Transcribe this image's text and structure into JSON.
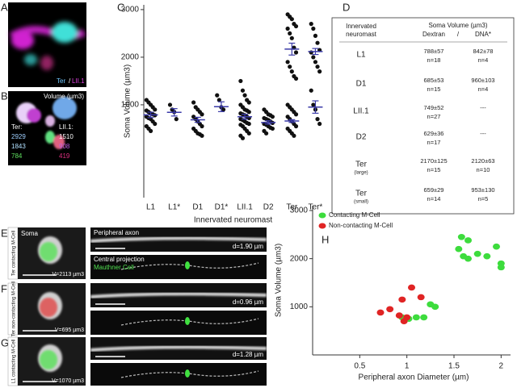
{
  "panels": {
    "A": {
      "letter": "A",
      "legend": [
        "Ter",
        "/",
        "LII.1"
      ]
    },
    "B": {
      "letter": "B",
      "title": "Volume (µm3)",
      "ter": {
        "label": "Ter:",
        "values": [
          "2929",
          "1843",
          "784"
        ]
      },
      "lii": {
        "label": "LII.1:",
        "values": [
          "1510",
          "908",
          "419"
        ]
      }
    },
    "C": {
      "letter": "C"
    },
    "D": {
      "letter": "D"
    },
    "E": {
      "letter": "E",
      "side": "Ter contacting M-Cell",
      "soma": "Soma",
      "axon": "Peripheral axon",
      "diameter": "d=1.90 µm",
      "central": "Central projection",
      "mauthner": "Mauthner Cell",
      "volume": "V=2113 µm3"
    },
    "F": {
      "letter": "F",
      "side": "Ter non-contacting M-Cell",
      "diameter": "d=0.96 µm",
      "volume": "V=695 µm3"
    },
    "G": {
      "letter": "G",
      "side": "L1 contacting M-Cell",
      "diameter": "d=1.28 µm",
      "volume": "V=1070 µm3"
    },
    "H": {
      "letter": "H"
    }
  },
  "table": {
    "header": {
      "col1": [
        "Innervated",
        "neuromast"
      ],
      "col2": "Soma Volume (µm3)",
      "col3": [
        "Dextran",
        "/",
        "DNA*"
      ]
    },
    "rows": [
      {
        "label": "L1",
        "dextran": [
          "788±57",
          "n=18"
        ],
        "dna": [
          "842±78",
          "n=4"
        ]
      },
      {
        "label": "D1",
        "dextran": [
          "685±53",
          "n=15"
        ],
        "dna": [
          "960±103",
          "n=4"
        ]
      },
      {
        "label": "LII.1",
        "dextran": [
          "749±52",
          "n=27"
        ],
        "dna": [
          "---"
        ]
      },
      {
        "label": "D2",
        "dextran": [
          "629±36",
          "n=17"
        ],
        "dna": [
          "---"
        ]
      },
      {
        "label": "Ter",
        "note": "(large)",
        "dextran": [
          "2170±125",
          "n=15"
        ],
        "dna": [
          "2120±63",
          "n=10"
        ]
      },
      {
        "label": "Ter",
        "note": "(small)",
        "dextran": [
          "659±29",
          "n=14"
        ],
        "dna": [
          "953±130",
          "n=5"
        ]
      }
    ]
  },
  "chart_data": [
    {
      "type": "dot",
      "y_label": "Soma Volume (µm3)",
      "x_label": "Innervated neuromast",
      "categories": [
        "L1",
        "L1*",
        "D1",
        "D1*",
        "LII.1",
        "D2",
        "Ter",
        "Ter*"
      ],
      "points": [
        [
          1100,
          1050,
          1000,
          950,
          900,
          880,
          850,
          820,
          800,
          780,
          750,
          720,
          700,
          650,
          600,
          550,
          500,
          450
        ],
        [
          1000,
          900,
          850,
          700
        ],
        [
          1050,
          950,
          900,
          850,
          800,
          750,
          700,
          650,
          600,
          550,
          500,
          450,
          400,
          380,
          350
        ],
        [
          1200,
          1100,
          950,
          900
        ],
        [
          1500,
          1300,
          1200,
          1100,
          1050,
          1000,
          950,
          900,
          880,
          850,
          820,
          800,
          780,
          750,
          720,
          700,
          680,
          650,
          620,
          600,
          580,
          550,
          500,
          450,
          400,
          350,
          300
        ],
        [
          900,
          850,
          800,
          780,
          750,
          720,
          700,
          680,
          650,
          620,
          600,
          580,
          550,
          520,
          500,
          450,
          400
        ],
        [
          2900,
          2850,
          2800,
          2700,
          2650,
          2600,
          2500,
          2400,
          2200,
          2100,
          1900,
          1800,
          1700,
          1600,
          1550,
          1000,
          950,
          900,
          850,
          800,
          750,
          700,
          650,
          600,
          550,
          500,
          450,
          400,
          350
        ],
        [
          2700,
          2600,
          2450,
          2300,
          2150,
          2100,
          2000,
          1900,
          1800,
          1700,
          1300,
          1000,
          900,
          700,
          600
        ]
      ],
      "means": [
        [
          788
        ],
        [
          842
        ],
        [
          685
        ],
        [
          960
        ],
        [
          749
        ],
        [
          629
        ],
        [
          2170,
          659
        ],
        [
          2120,
          953
        ]
      ],
      "errors": [
        [
          57
        ],
        [
          78
        ],
        [
          53
        ],
        [
          103
        ],
        [
          52
        ],
        [
          36
        ],
        [
          125,
          29
        ],
        [
          63,
          130
        ]
      ],
      "point_color": "#111111",
      "mean_color": "#3a3aa8",
      "ylim": [
        -950,
        3100
      ],
      "yticks": [
        1000,
        2000,
        3000
      ]
    },
    {
      "type": "scatter",
      "x_label": "Peripheral axon Diameter (µm)",
      "y_label": "Soma Volume (µm3)",
      "series": [
        {
          "name": "Contacting M-Cell",
          "color": "#3ddc3d",
          "x": [
            1.58,
            1.65,
            1.55,
            1.6,
            1.65,
            1.75,
            1.85,
            1.95,
            2.0,
            2.0,
            0.95,
            1.02,
            1.1,
            1.18,
            1.25,
            1.3
          ],
          "y": [
            2450,
            2380,
            2200,
            2050,
            2000,
            2100,
            2050,
            2250,
            1900,
            1820,
            780,
            750,
            780,
            780,
            1050,
            1000
          ]
        },
        {
          "name": "Non-contacting M-Cell",
          "color": "#e02424",
          "x": [
            1.05,
            0.95,
            1.15,
            0.82,
            0.72,
            0.92,
            1.0,
            0.97
          ],
          "y": [
            1400,
            1150,
            1200,
            950,
            880,
            820,
            780,
            700
          ]
        }
      ],
      "xlim": [
        0,
        2.1
      ],
      "ylim": [
        0,
        3100
      ],
      "xticks": [
        0.5,
        1,
        1.5,
        2
      ],
      "yticks": [
        1000,
        2000,
        3000
      ],
      "legend": "upper left"
    }
  ]
}
